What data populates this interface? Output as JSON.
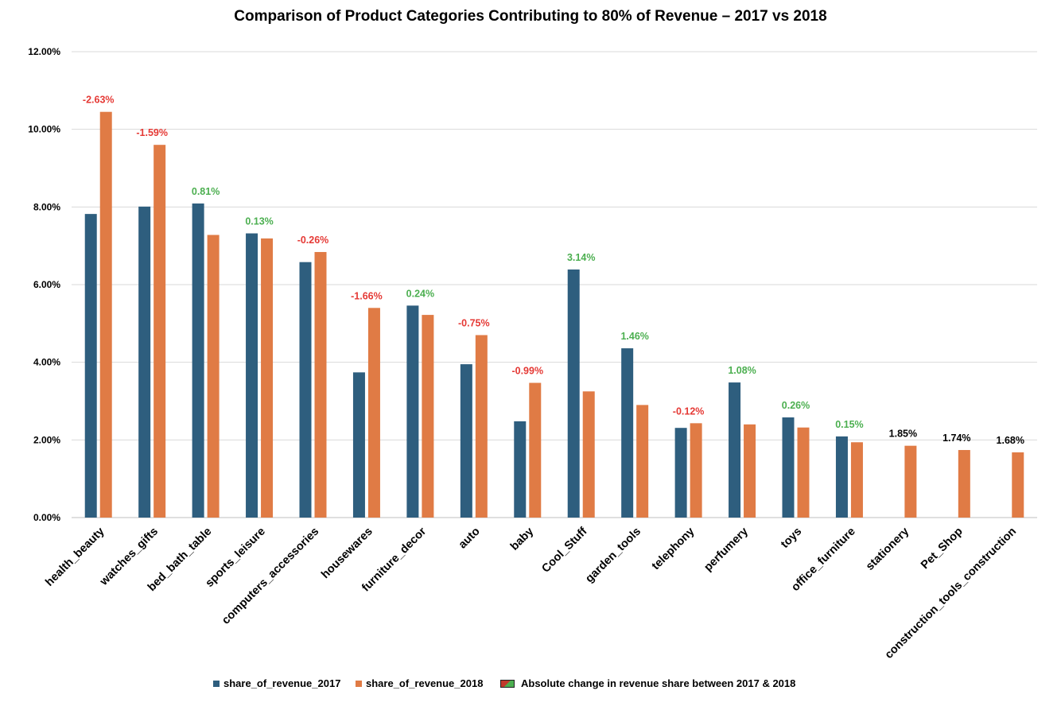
{
  "chart_data": {
    "type": "bar",
    "title": "Comparison of Product Categories Contributing to 80% of Revenue – 2017 vs 2018",
    "xlabel": "",
    "ylabel": "",
    "ylim": [
      0,
      12
    ],
    "y_ticks": [
      "0.00%",
      "2.00%",
      "4.00%",
      "6.00%",
      "8.00%",
      "10.00%",
      "12.00%"
    ],
    "grid": true,
    "legend_position": "bottom",
    "categories": [
      "health_beauty",
      "watches_gifts",
      "bed_bath_table",
      "sports_leisure",
      "computers_accessories",
      "housewares",
      "furniture_decor",
      "auto",
      "baby",
      "Cool_Stuff",
      "garden_tools",
      "telephony",
      "perfumery",
      "toys",
      "office_furniture",
      "stationery",
      "Pet_Shop",
      "construction_tools_construction"
    ],
    "series": [
      {
        "name": "share_of_revenue_2017",
        "color": "#2e5e7e",
        "values": [
          7.82,
          8.01,
          8.09,
          7.32,
          6.58,
          3.74,
          5.46,
          3.95,
          2.48,
          6.39,
          4.36,
          2.31,
          3.48,
          2.58,
          2.09,
          null,
          null,
          null
        ]
      },
      {
        "name": "share_of_revenue_2018",
        "color": "#e07b45",
        "values": [
          10.45,
          9.6,
          7.28,
          7.19,
          6.84,
          5.4,
          5.22,
          4.7,
          3.47,
          3.25,
          2.9,
          2.43,
          2.4,
          2.32,
          1.94,
          1.85,
          1.74,
          1.68
        ]
      }
    ],
    "change_labels": {
      "name": "Absolute change in revenue share between 2017 & 2018",
      "values": [
        "-2.63%",
        "-1.59%",
        "0.81%",
        "0.13%",
        "-0.26%",
        "-1.66%",
        "0.24%",
        "-0.75%",
        "-0.99%",
        "3.14%",
        "1.46%",
        "-0.12%",
        "1.08%",
        "0.26%",
        "0.15%",
        "1.85%",
        "1.74%",
        "1.68%"
      ],
      "colors": [
        "#e53935",
        "#e53935",
        "#4caf50",
        "#4caf50",
        "#e53935",
        "#e53935",
        "#4caf50",
        "#e53935",
        "#e53935",
        "#4caf50",
        "#4caf50",
        "#e53935",
        "#4caf50",
        "#4caf50",
        "#4caf50",
        "#000000",
        "#000000",
        "#000000"
      ]
    }
  }
}
